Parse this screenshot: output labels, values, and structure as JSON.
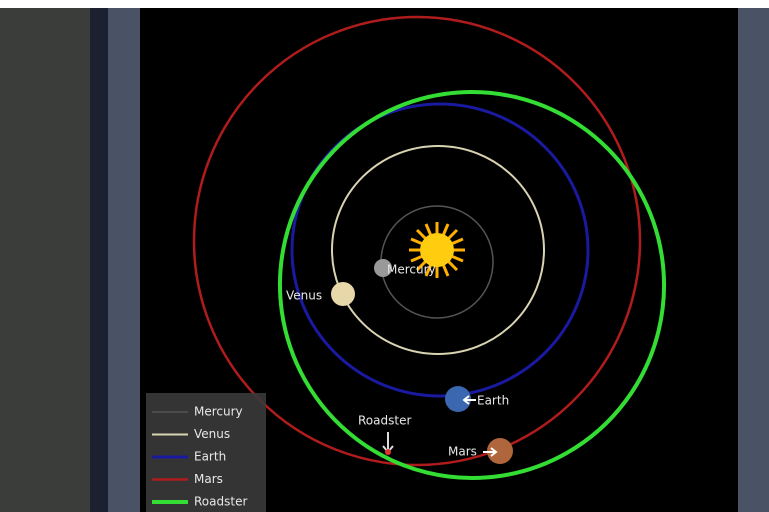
{
  "bodies": [
    {
      "label": "Mercury"
    },
    {
      "label": "Venus"
    },
    {
      "label": "Earth"
    },
    {
      "label": "Mars"
    },
    {
      "label": "Roadster"
    }
  ],
  "legend": [
    {
      "label": "Mercury",
      "color": "#555555"
    },
    {
      "label": "Venus",
      "color": "#d8d3b0"
    },
    {
      "label": "Earth",
      "color": "#1a1aa0"
    },
    {
      "label": "Mars",
      "color": "#b01c1c"
    },
    {
      "label": "Roadster",
      "color": "#33dd33"
    }
  ]
}
